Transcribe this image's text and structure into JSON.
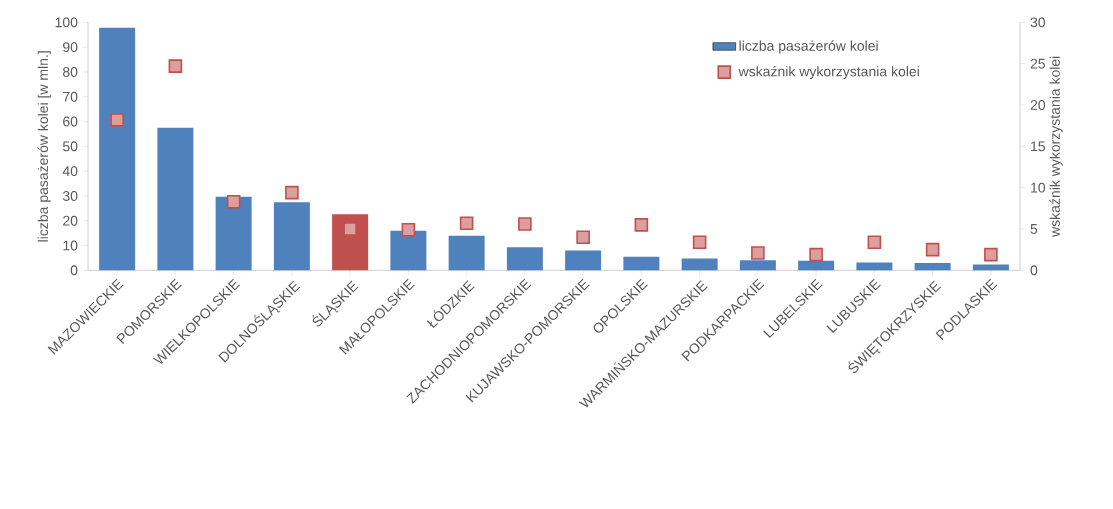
{
  "chart_data": {
    "type": "bar",
    "categories": [
      "MAZOWIECKIE",
      "POMORSKIE",
      "WIELKOPOLSKIE",
      "DOLNOŚLĄSKIE",
      "ŚLĄSKIE",
      "MAŁOPOLSKIE",
      "ŁÓDZKIE",
      "ZACHODNIOPOMORSKIE",
      "KUJAWSKO-POMORSKIE",
      "OPOLSKIE",
      "WARMIŃSKO-MAZURSKIE",
      "PODKARPACKIE",
      "LUBELSKIE",
      "LUBUSKIE",
      "ŚWIĘTOKRZYSKIE",
      "PODLASKIE"
    ],
    "ylabel": "liczba pasażerów kolei [w mln.]",
    "y2label": "wskaźnik wykorzystania kolei",
    "ylim": [
      0,
      100
    ],
    "yticks": [
      0,
      10,
      20,
      30,
      40,
      50,
      60,
      70,
      80,
      90,
      100
    ],
    "y2lim": [
      0,
      30
    ],
    "y2ticks": [
      0,
      5,
      10,
      15,
      20,
      25,
      30
    ],
    "legend": "top right",
    "series": [
      {
        "name": "liczba pasażerów kolei",
        "color": "#4f81bd",
        "colors": [
          "#4f81bd",
          "#4f81bd",
          "#4f81bd",
          "#4f81bd",
          "#c0504d",
          "#4f81bd",
          "#4f81bd",
          "#4f81bd",
          "#4f81bd",
          "#4f81bd",
          "#4f81bd",
          "#4f81bd",
          "#4f81bd",
          "#4f81bd",
          "#4f81bd",
          "#4f81bd"
        ],
        "values": [
          97.8,
          57.5,
          29.7,
          27.4,
          22.6,
          16.0,
          13.9,
          9.3,
          8.0,
          5.5,
          4.8,
          4.1,
          3.9,
          3.2,
          3.0,
          2.3
        ]
      },
      {
        "name": "wskaźnik wykorzystania kolei",
        "type": "scatter",
        "axis": "y2",
        "marker": "square",
        "color": "#c0504d",
        "values": [
          18.2,
          24.7,
          8.3,
          9.4,
          5.0,
          4.9,
          5.7,
          5.6,
          4.0,
          5.5,
          3.4,
          2.1,
          1.9,
          3.4,
          2.5,
          1.9
        ]
      }
    ]
  }
}
